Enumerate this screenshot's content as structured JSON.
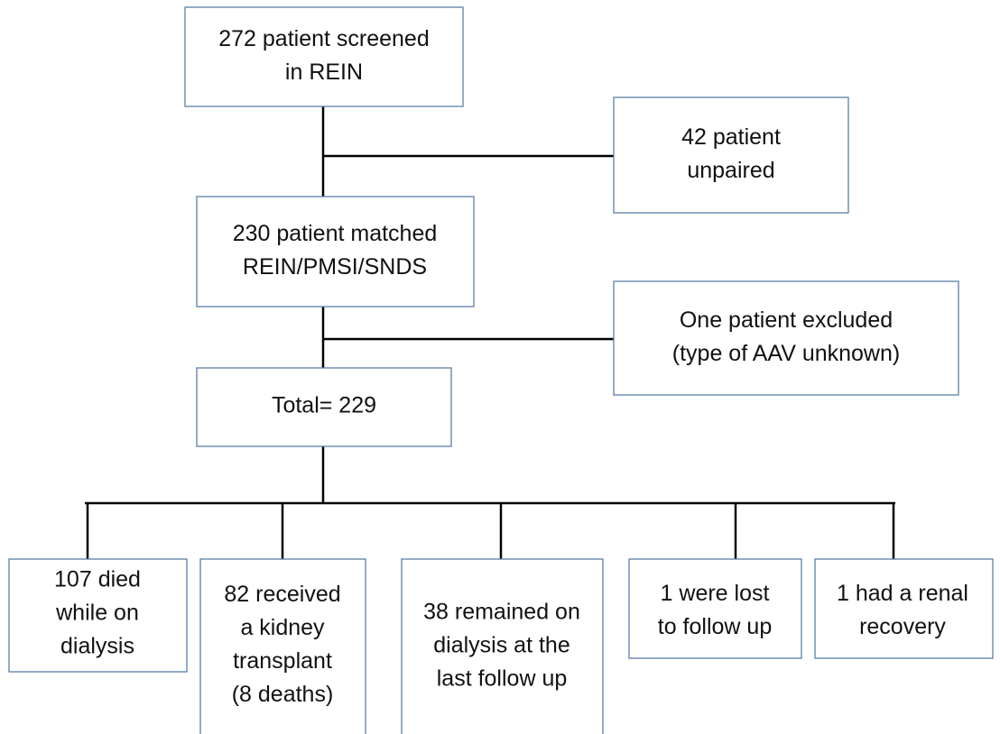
{
  "nodes": [
    {
      "lines": [
        "272 patient screened",
        "in REIN"
      ]
    },
    {
      "lines": [
        "42 patient",
        "unpaired"
      ]
    },
    {
      "lines": [
        "230 patient matched",
        "REIN/PMSI/SNDS"
      ]
    },
    {
      "lines": [
        "One patient excluded",
        "(type of AAV unknown)"
      ]
    },
    {
      "lines": [
        "Total= 229"
      ]
    },
    {
      "lines": [
        "107 died",
        "while on",
        "dialysis"
      ]
    },
    {
      "lines": [
        "82 received",
        "a kidney",
        "transplant",
        "(8 deaths)"
      ]
    },
    {
      "lines": [
        "38 remained on",
        "dialysis at the",
        "last follow up"
      ]
    },
    {
      "lines": [
        "1 were lost",
        "to follow up"
      ]
    },
    {
      "lines": [
        "1 had a renal",
        "recovery"
      ]
    }
  ]
}
